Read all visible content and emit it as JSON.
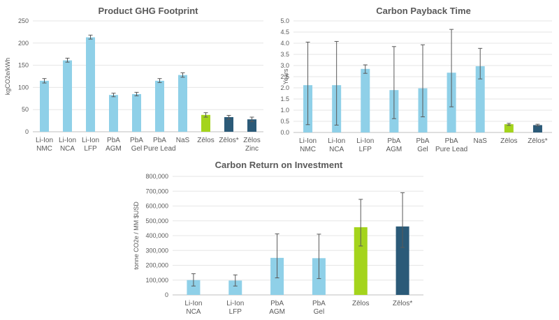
{
  "colors": {
    "light_blue": "#8fd0e8",
    "green": "#a4d41c",
    "dark_blue": "#2b5a78"
  },
  "chart_data": [
    {
      "type": "bar",
      "title": "Product GHG Footprint",
      "ylabel": "kgCO2e/kWh",
      "xlabel": "",
      "ylim": [
        0,
        250
      ],
      "yticks": [
        "0",
        "50",
        "100",
        "150",
        "200",
        "250"
      ],
      "categories": [
        [
          "Li-Ion",
          "NMC"
        ],
        [
          "Li-Ion",
          "NCA"
        ],
        [
          "Li-Ion",
          "LFP"
        ],
        [
          "PbA",
          "AGM"
        ],
        [
          "PbA",
          "Gel"
        ],
        [
          "PbA",
          "Pure Lead"
        ],
        [
          "NaS"
        ],
        [
          "Zēlos"
        ],
        [
          "Zēlos*"
        ],
        [
          "Zēlos",
          "Zinc"
        ]
      ],
      "values": [
        115,
        161,
        213,
        83,
        85,
        115,
        128,
        38,
        33,
        28
      ],
      "error_low": [
        110,
        157,
        209,
        79,
        81,
        111,
        123,
        33,
        28,
        23
      ],
      "error_high": [
        120,
        166,
        218,
        87,
        89,
        120,
        133,
        43,
        37,
        33
      ],
      "colors": [
        "light_blue",
        "light_blue",
        "light_blue",
        "light_blue",
        "light_blue",
        "light_blue",
        "light_blue",
        "green",
        "dark_blue",
        "dark_blue"
      ],
      "grid": true
    },
    {
      "type": "bar",
      "title": "Carbon Payback Time",
      "ylabel": "Years",
      "xlabel": "",
      "ylim": [
        0,
        5
      ],
      "yticks": [
        "0.0",
        "0.5",
        "1.0",
        "1.5",
        "2.0",
        "2.5",
        "3.0",
        "3.5",
        "4.0",
        "4.5",
        "5.0"
      ],
      "categories": [
        [
          "Li-Ion",
          "NMC"
        ],
        [
          "Li-Ion",
          "NCA"
        ],
        [
          "Li-Ion",
          "LFP"
        ],
        [
          "PbA",
          "AGM"
        ],
        [
          "PbA",
          "Gel"
        ],
        [
          "PbA",
          "Pure Lead"
        ],
        [
          "NaS"
        ],
        [
          "Zēlos"
        ],
        [
          "Zēlos*"
        ]
      ],
      "values": [
        2.12,
        2.12,
        2.85,
        1.9,
        1.98,
        2.68,
        2.97,
        0.37,
        0.33
      ],
      "error_low": [
        0.35,
        0.33,
        2.65,
        0.62,
        0.7,
        1.15,
        2.4,
        0.32,
        0.29
      ],
      "error_high": [
        4.05,
        4.08,
        3.03,
        3.85,
        3.93,
        4.62,
        3.77,
        0.41,
        0.37
      ],
      "colors": [
        "light_blue",
        "light_blue",
        "light_blue",
        "light_blue",
        "light_blue",
        "light_blue",
        "light_blue",
        "green",
        "dark_blue"
      ],
      "grid": true
    },
    {
      "type": "bar",
      "title": "Carbon Return on Investment",
      "ylabel": "tonne CO2e / MM $USD",
      "xlabel": "",
      "ylim": [
        0,
        800000
      ],
      "yticks": [
        "0",
        "100,000",
        "200,000",
        "300,000",
        "400,000",
        "500,000",
        "600,000",
        "700,000",
        "800,000"
      ],
      "categories": [
        [
          "Li-Ion",
          "NCA"
        ],
        [
          "Li-Ion",
          "LFP"
        ],
        [
          "PbA",
          "AGM"
        ],
        [
          "PbA",
          "Gel"
        ],
        [
          "Zēlos"
        ],
        [
          "Zēlos*"
        ]
      ],
      "values": [
        100000,
        97000,
        250000,
        248000,
        457000,
        462000
      ],
      "error_low": [
        60000,
        60000,
        115000,
        110000,
        330000,
        320000
      ],
      "error_high": [
        143000,
        135000,
        412000,
        410000,
        645000,
        690000
      ],
      "colors": [
        "light_blue",
        "light_blue",
        "light_blue",
        "light_blue",
        "green",
        "dark_blue"
      ],
      "grid": true
    }
  ]
}
